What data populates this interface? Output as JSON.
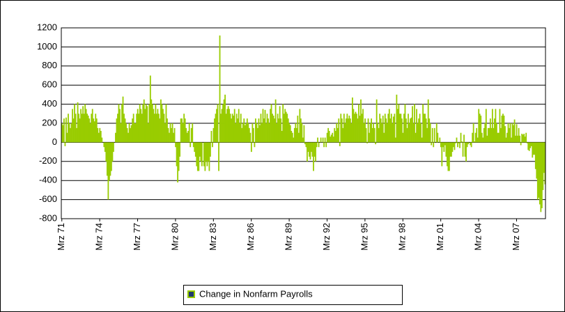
{
  "chart_data": {
    "type": "bar",
    "categories": [
      "Mrz 71",
      null,
      null,
      null,
      null,
      null,
      null,
      null,
      null,
      null,
      null,
      null,
      null,
      null,
      null,
      null,
      null,
      null,
      null,
      null,
      null,
      null,
      null,
      null,
      null,
      null,
      null,
      null,
      null,
      null,
      null,
      null,
      null,
      null,
      null,
      null,
      "Mrz 74",
      null,
      null,
      null,
      null,
      null,
      null,
      null,
      null,
      null,
      null,
      null,
      null,
      null,
      null,
      null,
      null,
      null,
      null,
      null,
      null,
      null,
      null,
      null,
      null,
      null,
      null,
      null,
      null,
      null,
      null,
      null,
      null,
      null,
      null,
      null,
      "Mrz 77",
      null,
      null,
      null,
      null,
      null,
      null,
      null,
      null,
      null,
      null,
      null,
      null,
      null,
      null,
      null,
      null,
      null,
      null,
      null,
      null,
      null,
      null,
      null,
      null,
      null,
      null,
      null,
      null,
      null,
      null,
      null,
      null,
      null,
      null,
      null,
      "Mrz 80",
      null,
      null,
      null,
      null,
      null,
      null,
      null,
      null,
      null,
      null,
      null,
      null,
      null,
      null,
      null,
      null,
      null,
      null,
      null,
      null,
      null,
      null,
      null,
      null,
      null,
      null,
      null,
      null,
      null,
      null,
      null,
      null,
      null,
      null,
      null,
      "Mrz 83",
      null,
      null,
      null,
      null,
      null,
      null,
      null,
      null,
      null,
      null,
      null,
      null,
      null,
      null,
      null,
      null,
      null,
      null,
      null,
      null,
      null,
      null,
      null,
      null,
      null,
      null,
      null,
      null,
      null,
      null,
      null,
      null,
      null,
      null,
      null,
      "Mrz 86",
      null,
      null,
      null,
      null,
      null,
      null,
      null,
      null,
      null,
      null,
      null,
      null,
      null,
      null,
      null,
      null,
      null,
      null,
      null,
      null,
      null,
      null,
      null,
      null,
      null,
      null,
      null,
      null,
      null,
      null,
      null,
      null,
      null,
      null,
      null,
      "Mrz 89",
      null,
      null,
      null,
      null,
      null,
      null,
      null,
      null,
      null,
      null,
      null,
      null,
      null,
      null,
      null,
      null,
      null,
      null,
      null,
      null,
      null,
      null,
      null,
      null,
      null,
      null,
      null,
      null,
      null,
      null,
      null,
      null,
      null,
      null,
      null,
      "Mrz 92",
      null,
      null,
      null,
      null,
      null,
      null,
      null,
      null,
      null,
      null,
      null,
      null,
      null,
      null,
      null,
      null,
      null,
      null,
      null,
      null,
      null,
      null,
      null,
      null,
      null,
      null,
      null,
      null,
      null,
      null,
      null,
      null,
      null,
      null,
      null,
      "Mrz 95",
      null,
      null,
      null,
      null,
      null,
      null,
      null,
      null,
      null,
      null,
      null,
      null,
      null,
      null,
      null,
      null,
      null,
      null,
      null,
      null,
      null,
      null,
      null,
      null,
      null,
      null,
      null,
      null,
      null,
      null,
      null,
      null,
      null,
      null,
      null,
      "Mrz 98",
      null,
      null,
      null,
      null,
      null,
      null,
      null,
      null,
      null,
      null,
      null,
      null,
      null,
      null,
      null,
      null,
      null,
      null,
      null,
      null,
      null,
      null,
      null,
      null,
      null,
      null,
      null,
      null,
      null,
      null,
      null,
      null,
      null,
      null,
      null,
      "Mrz 01",
      null,
      null,
      null,
      null,
      null,
      null,
      null,
      null,
      null,
      null,
      null,
      null,
      null,
      null,
      null,
      null,
      null,
      null,
      null,
      null,
      null,
      null,
      null,
      null,
      null,
      null,
      null,
      null,
      null,
      null,
      null,
      null,
      null,
      null,
      null,
      "Mrz 04",
      null,
      null,
      null,
      null,
      null,
      null,
      null,
      null,
      null,
      null,
      null,
      null,
      null,
      null,
      null,
      null,
      null,
      null,
      null,
      null,
      null,
      null,
      null,
      null,
      null,
      null,
      null,
      null,
      null,
      null,
      null,
      null,
      null,
      null,
      null,
      "Mrz 07",
      null,
      null,
      null,
      null,
      null,
      null,
      null,
      null,
      null,
      null,
      null,
      null,
      null,
      null,
      null,
      null,
      null,
      null,
      null,
      null,
      null,
      null,
      null,
      null,
      null,
      null,
      null
    ],
    "series": [
      {
        "name": "Change in Nonfarm Payrolls",
        "color": "#99cc00",
        "values": [
          200,
          180,
          250,
          -40,
          260,
          100,
          300,
          200,
          150,
          200,
          350,
          250,
          400,
          300,
          150,
          420,
          300,
          250,
          350,
          300,
          380,
          300,
          400,
          350,
          300,
          280,
          250,
          200,
          300,
          350,
          250,
          220,
          300,
          250,
          150,
          100,
          150,
          120,
          50,
          0,
          -50,
          -100,
          -200,
          -350,
          -600,
          -400,
          -350,
          -300,
          -200,
          -100,
          0,
          100,
          250,
          300,
          400,
          350,
          200,
          400,
          480,
          300,
          250,
          200,
          150,
          100,
          200,
          150,
          180,
          250,
          300,
          200,
          200,
          300,
          350,
          300,
          400,
          350,
          300,
          400,
          450,
          350,
          400,
          380,
          200,
          400,
          700,
          450,
          400,
          350,
          300,
          400,
          300,
          350,
          300,
          250,
          450,
          400,
          350,
          300,
          200,
          400,
          250,
          150,
          100,
          200,
          150,
          200,
          100,
          150,
          -50,
          -250,
          -420,
          -300,
          -150,
          250,
          250,
          200,
          300,
          250,
          150,
          100,
          120,
          200,
          -50,
          150,
          200,
          -50,
          -100,
          -150,
          -250,
          -300,
          -300,
          -150,
          -200,
          -250,
          0,
          -250,
          -300,
          -200,
          -250,
          -200,
          -300,
          -150,
          120,
          -50,
          150,
          250,
          300,
          350,
          400,
          -300,
          1120,
          300,
          350,
          400,
          450,
          500,
          300,
          350,
          380,
          350,
          300,
          250,
          300,
          280,
          350,
          200,
          300,
          250,
          350,
          200,
          300,
          150,
          200,
          250,
          180,
          200,
          250,
          200,
          150,
          100,
          -100,
          200,
          150,
          -50,
          250,
          200,
          150,
          250,
          180,
          300,
          200,
          350,
          250,
          340,
          200,
          300,
          250,
          200,
          350,
          400,
          300,
          280,
          250,
          450,
          200,
          300,
          250,
          380,
          250,
          120,
          400,
          300,
          350,
          320,
          300,
          250,
          200,
          180,
          120,
          100,
          50,
          150,
          200,
          150,
          280,
          100,
          350,
          250,
          200,
          50,
          180,
          -20,
          -50,
          -200,
          -100,
          -150,
          -180,
          -100,
          -150,
          -300,
          -150,
          -200,
          -50,
          50,
          -50,
          0,
          50,
          0,
          50,
          -50,
          50,
          -50,
          100,
          150,
          120,
          60,
          80,
          100,
          60,
          150,
          120,
          200,
          150,
          250,
          -40,
          300,
          250,
          150,
          300,
          200,
          250,
          300,
          250,
          280,
          250,
          200,
          470,
          350,
          300,
          320,
          300,
          250,
          400,
          280,
          450,
          300,
          350,
          200,
          250,
          150,
          -10,
          250,
          100,
          200,
          250,
          150,
          200,
          150,
          -20,
          450,
          200,
          150,
          300,
          250,
          200,
          280,
          100,
          300,
          250,
          200,
          300,
          350,
          250,
          300,
          200,
          270,
          300,
          50,
          500,
          350,
          400,
          300,
          300,
          250,
          100,
          300,
          400,
          250,
          150,
          300,
          200,
          250,
          260,
          380,
          200,
          400,
          100,
          350,
          200,
          250,
          300,
          200,
          50,
          400,
          300,
          300,
          250,
          150,
          450,
          250,
          200,
          -30,
          150,
          -50,
          150,
          0,
          200,
          100,
          0,
          50,
          -50,
          -250,
          -50,
          -100,
          -30,
          -150,
          -250,
          -300,
          -300,
          -150,
          -150,
          -100,
          -50,
          -80,
          -10,
          50,
          -50,
          -10,
          -60,
          100,
          10,
          -150,
          80,
          -150,
          -200,
          -50,
          -20,
          0,
          -30,
          -50,
          100,
          200,
          10,
          100,
          150,
          50,
          350,
          300,
          280,
          100,
          50,
          150,
          200,
          350,
          70,
          150,
          150,
          250,
          150,
          350,
          150,
          250,
          350,
          200,
          100,
          100,
          350,
          150,
          280,
          300,
          280,
          170,
          50,
          100,
          200,
          150,
          200,
          50,
          200,
          180,
          240,
          70,
          190,
          70,
          150,
          70,
          -30,
          90,
          80,
          90,
          60,
          100,
          -10,
          -80,
          -90,
          -60,
          -40,
          -160,
          -130,
          -130,
          -280,
          -380,
          -600,
          -580,
          -650,
          -730,
          -690,
          -500,
          -320,
          -440
        ]
      }
    ],
    "ylim": [
      -800,
      1200
    ],
    "yticks": [
      -800,
      -600,
      -400,
      -200,
      0,
      200,
      400,
      600,
      800,
      1000,
      1200
    ],
    "grid": true,
    "legend": "bottom"
  }
}
